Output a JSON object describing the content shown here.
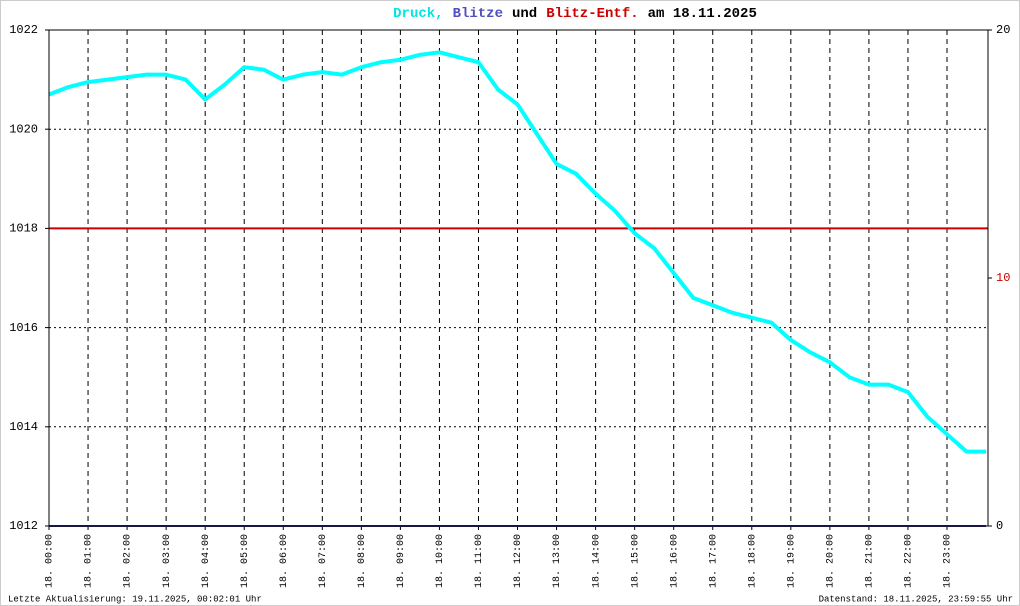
{
  "chart_data": {
    "type": "line",
    "title_parts": [
      {
        "text": "Druck,",
        "color": "#00e5e5"
      },
      {
        "text": "Blitze",
        "color": "#5050c0"
      },
      {
        "text": "und",
        "color": "#000000"
      },
      {
        "text": "Blitz-Entf.",
        "color": "#cc0000"
      },
      {
        "text": "am 18.11.2025",
        "color": "#000000"
      }
    ],
    "x": [
      0,
      0.5,
      1,
      1.5,
      2,
      2.5,
      3,
      3.5,
      4,
      4.5,
      5,
      5.5,
      6,
      6.5,
      7,
      7.5,
      8,
      8.5,
      9,
      9.5,
      10,
      10.5,
      11,
      11.5,
      12,
      12.5,
      13,
      13.5,
      14,
      14.5,
      15,
      15.5,
      16,
      16.5,
      17,
      17.5,
      18,
      18.5,
      19,
      19.5,
      20,
      20.5,
      21,
      21.5,
      22,
      22.5,
      23,
      23.5,
      24
    ],
    "series": [
      {
        "name": "Druck",
        "color": "#00ffff",
        "values": [
          1020.7,
          1020.85,
          1020.95,
          1021.0,
          1021.05,
          1021.1,
          1021.1,
          1021.0,
          1020.6,
          1020.9,
          1021.25,
          1021.2,
          1021.0,
          1021.1,
          1021.15,
          1021.1,
          1021.25,
          1021.35,
          1021.4,
          1021.5,
          1021.55,
          1021.45,
          1021.35,
          1020.8,
          1020.5,
          1019.9,
          1019.3,
          1019.1,
          1018.7,
          1018.35,
          1017.9,
          1017.6,
          1017.1,
          1016.6,
          1016.45,
          1016.3,
          1016.2,
          1016.1,
          1015.75,
          1015.5,
          1015.3,
          1015.0,
          1014.85,
          1014.85,
          1014.7,
          1014.2,
          1013.85,
          1013.5,
          1013.5
        ]
      },
      {
        "name": "Blitze",
        "color": "#303090",
        "axis": "y2",
        "x": [
          0,
          24
        ],
        "values": [
          0,
          0
        ]
      }
    ],
    "reference_line": {
      "value": 1018,
      "color": "#cc0000"
    },
    "xlim": [
      0,
      24.05
    ],
    "xticks": [
      {
        "value": 0,
        "label": "18. 00:00"
      },
      {
        "value": 1,
        "label": "18. 01:00"
      },
      {
        "value": 2,
        "label": "18. 02:00"
      },
      {
        "value": 3,
        "label": "18. 03:00"
      },
      {
        "value": 4,
        "label": "18. 04:00"
      },
      {
        "value": 5,
        "label": "18. 05:00"
      },
      {
        "value": 6,
        "label": "18. 06:00"
      },
      {
        "value": 7,
        "label": "18. 07:00"
      },
      {
        "value": 8,
        "label": "18. 08:00"
      },
      {
        "value": 9,
        "label": "18. 09:00"
      },
      {
        "value": 10,
        "label": "18. 10:00"
      },
      {
        "value": 11,
        "label": "18. 11:00"
      },
      {
        "value": 12,
        "label": "18. 12:00"
      },
      {
        "value": 13,
        "label": "18. 13:00"
      },
      {
        "value": 14,
        "label": "18. 14:00"
      },
      {
        "value": 15,
        "label": "18. 15:00"
      },
      {
        "value": 16,
        "label": "18. 16:00"
      },
      {
        "value": 17,
        "label": "18. 17:00"
      },
      {
        "value": 18,
        "label": "18. 18:00"
      },
      {
        "value": 19,
        "label": "18. 19:00"
      },
      {
        "value": 20,
        "label": "18. 20:00"
      },
      {
        "value": 21,
        "label": "18. 21:00"
      },
      {
        "value": 22,
        "label": "18. 22:00"
      },
      {
        "value": 23,
        "label": "18. 23:00"
      }
    ],
    "ylim": [
      1012,
      1022
    ],
    "yticks": [
      1012,
      1014,
      1016,
      1018,
      1020,
      1022
    ],
    "y2lim": [
      0,
      20
    ],
    "y2ticks": [
      0,
      10,
      20
    ],
    "y2tick_colors": [
      "#000000",
      "#cc0000",
      "#000000"
    ],
    "grid": true,
    "footer_left": "Letzte Aktualisierung: 19.11.2025, 00:02:01 Uhr",
    "footer_right": "Datenstand: 18.11.2025, 23:59:55 Uhr"
  }
}
